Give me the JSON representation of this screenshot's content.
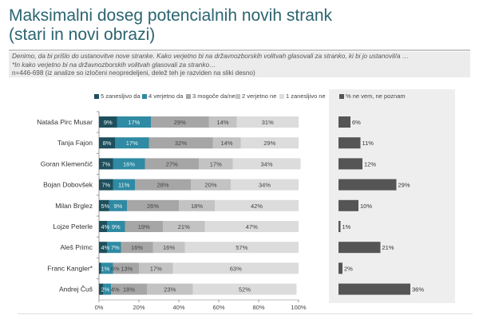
{
  "title_lines": [
    "Maksimalni doseg potencialnih novih strank",
    "(stari in novi obrazi)"
  ],
  "note": {
    "line1": "Denimo, da bi prišlo do ustanovitve nove stranke. Kako verjetno bi na državnozborskih volitvah glasovali za stranko, ki bi jo ustanovil/a …",
    "line2": "*In kako verjetno bi na državnozborskih volitvah glasovali za stranko…",
    "line3": "n=446-698 (iz analize so izločeni neopredeljeni, delež teh je razviden na sliki desno)"
  },
  "chart_data": {
    "type": "bar",
    "subtype": "stacked-horizontal",
    "categories": [
      "Nataša Pirc Musar",
      "Tanja Fajon",
      "Goran Klemenčič",
      "Bojan Dobovšek",
      "Milan Brglez",
      "Lojze Peterle",
      "Aleš Primc",
      "Franc Kangler*",
      "Andrej Čuš"
    ],
    "series": [
      {
        "name": "5 zanesljivo da",
        "color": "#1e4f5c",
        "values": [
          9,
          8,
          7,
          7,
          5,
          4,
          4,
          1,
          2
        ]
      },
      {
        "name": "4 verjetno da",
        "color": "#2f8aa3",
        "values": [
          17,
          17,
          16,
          11,
          9,
          9,
          7,
          6,
          4
        ]
      },
      {
        "name": "3 mogoče da/ne",
        "color": "#a6a6a6",
        "values": [
          29,
          32,
          27,
          28,
          26,
          19,
          16,
          13,
          18
        ]
      },
      {
        "name": "2 verjetno ne",
        "color": "#c3c3c3",
        "values": [
          14,
          14,
          17,
          20,
          18,
          21,
          16,
          17,
          23
        ]
      },
      {
        "name": "1 zanesljivo ne",
        "color": "#dcdcdc",
        "values": [
          31,
          29,
          34,
          34,
          42,
          47,
          57,
          63,
          52
        ]
      }
    ],
    "dont_know": {
      "name": "% ne vem, ne poznam",
      "color": "#555555",
      "values": [
        6,
        11,
        12,
        29,
        10,
        1,
        21,
        2,
        36
      ]
    },
    "xticks": [
      "0%",
      "20%",
      "40%",
      "60%",
      "80%",
      "100%"
    ],
    "xlim": [
      0,
      100
    ],
    "legend": "top"
  }
}
